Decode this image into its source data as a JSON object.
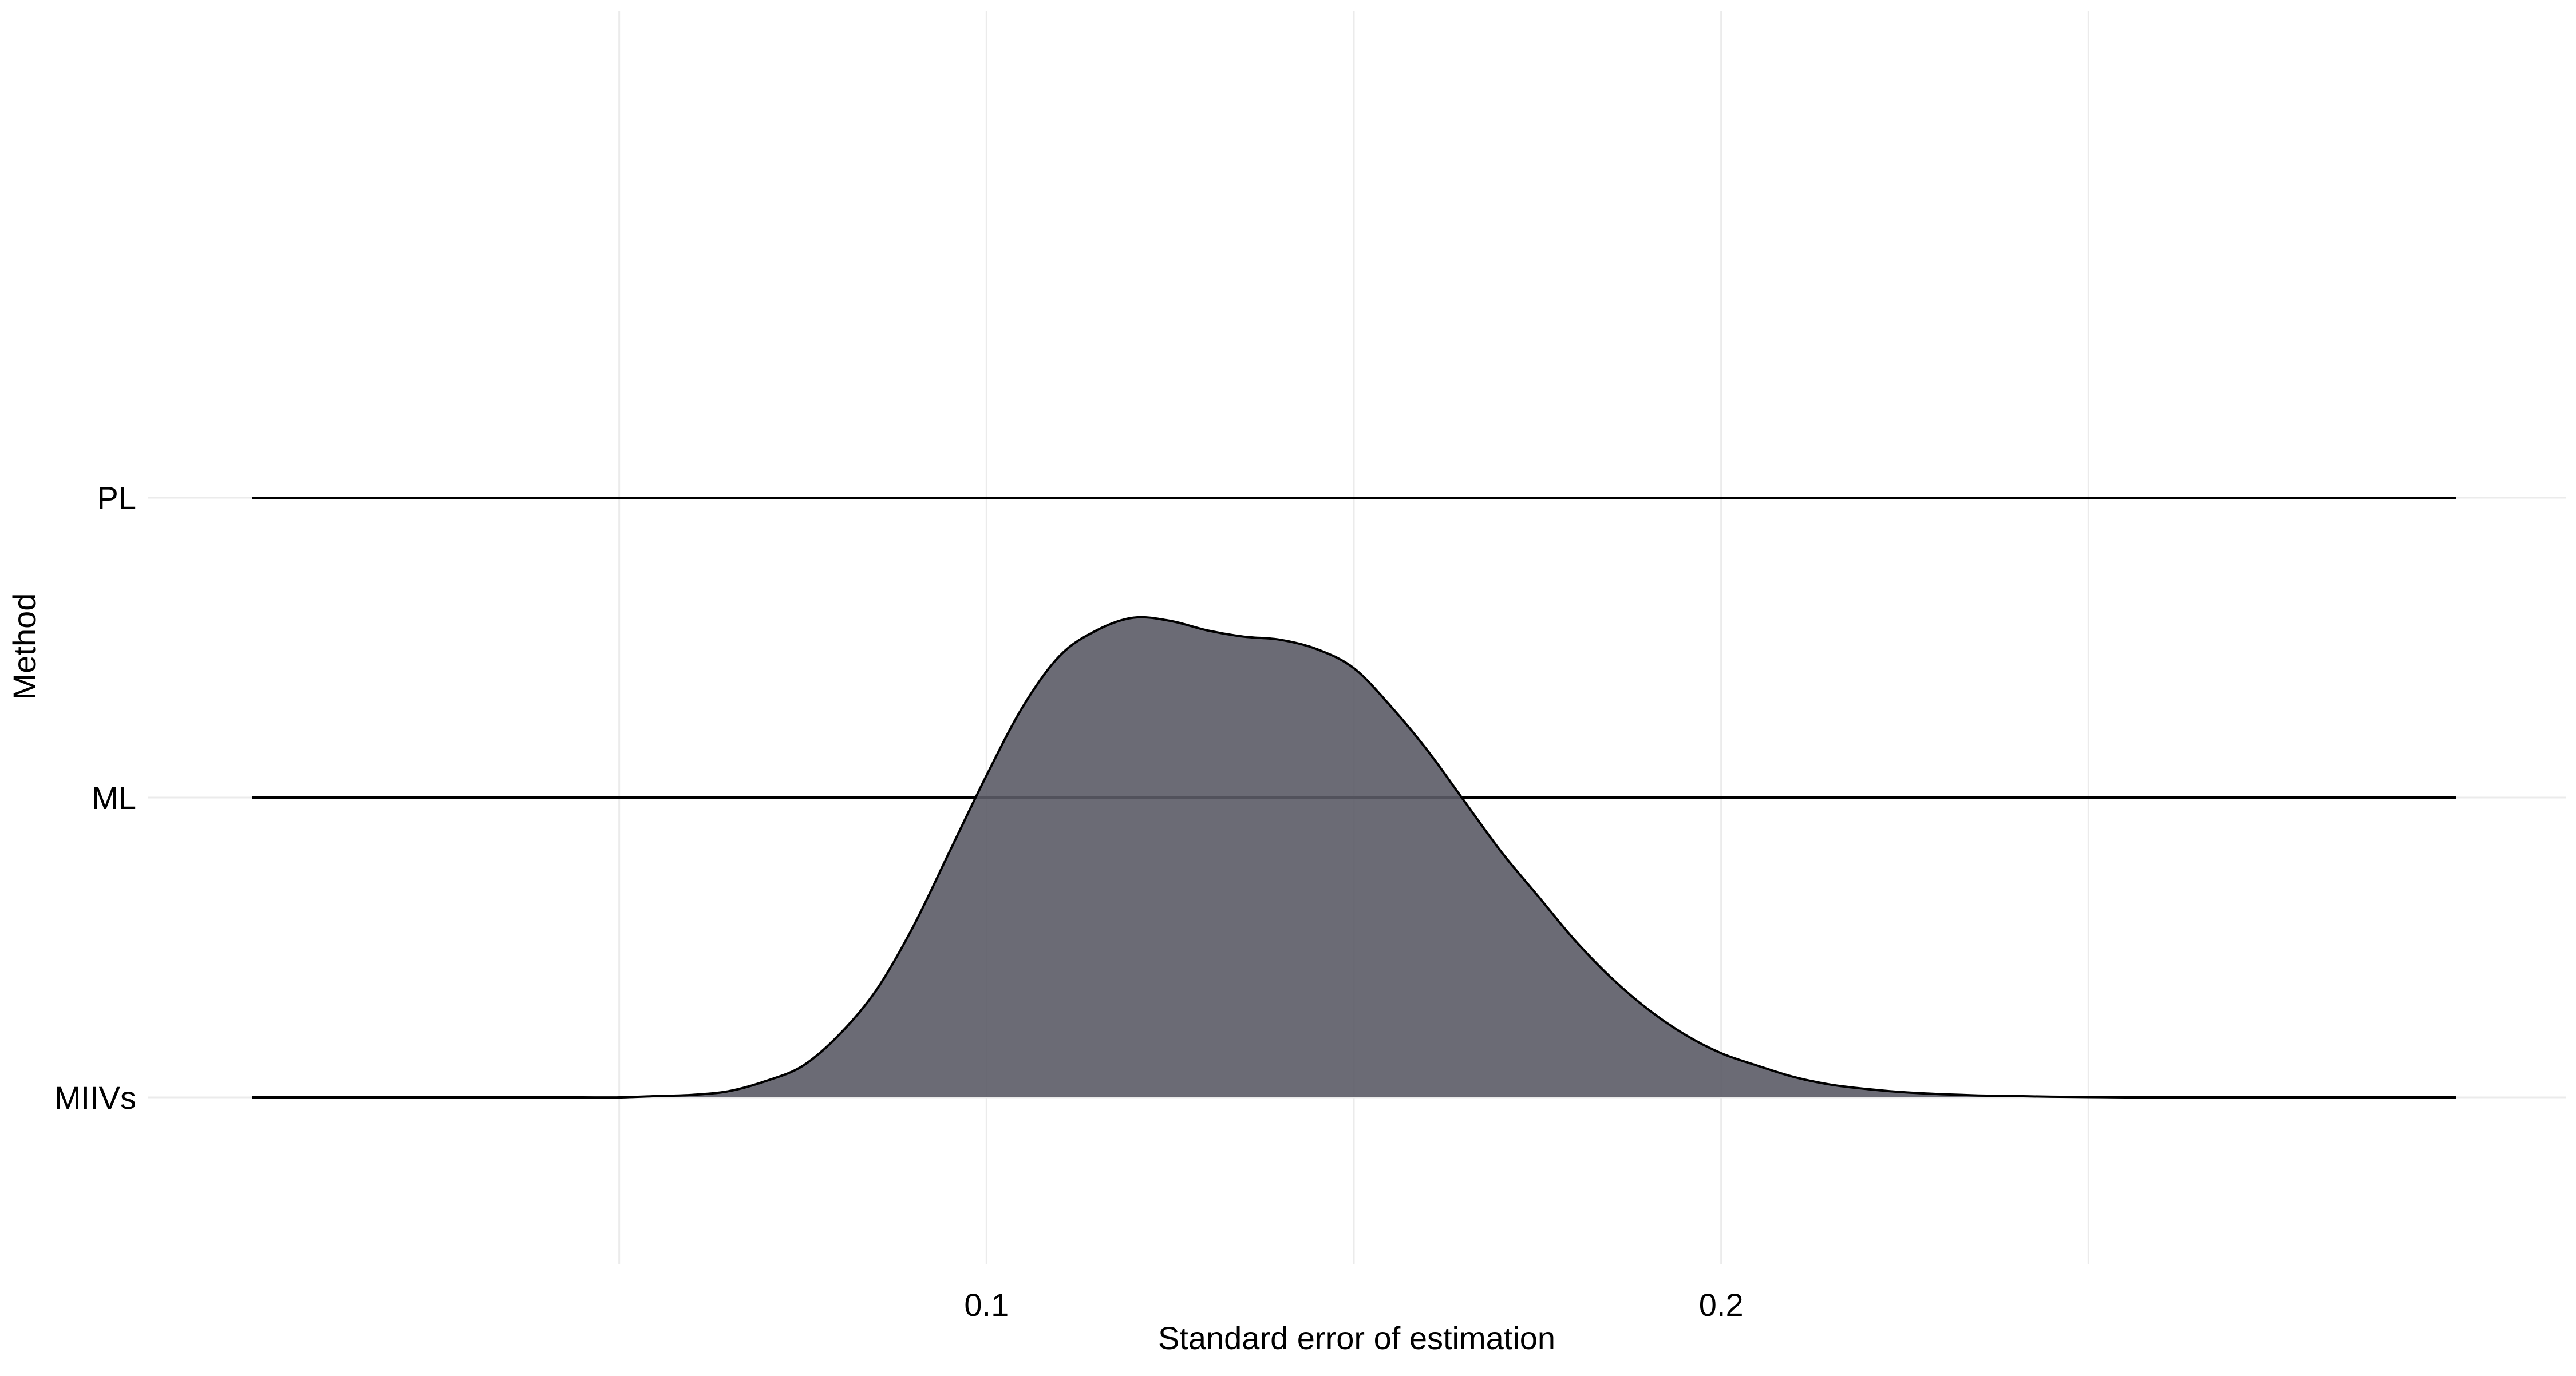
{
  "chart_data": {
    "type": "ridgeline",
    "title": "",
    "xlabel": "Standard error of estimation",
    "ylabel": "Method",
    "xlim": [
      0.0,
      0.3
    ],
    "x_ticks": [
      {
        "value": 0.1,
        "label": "0.1"
      },
      {
        "value": 0.2,
        "label": "0.2"
      }
    ],
    "x_minor_gridlines": [
      0.05,
      0.15,
      0.25
    ],
    "grid": true,
    "legend": "none",
    "scale": 1.0,
    "x_grid": [
      0.0,
      0.005,
      0.01,
      0.015,
      0.02,
      0.025,
      0.03,
      0.035,
      0.04,
      0.045,
      0.05,
      0.055,
      0.06,
      0.065,
      0.07,
      0.075,
      0.08,
      0.085,
      0.09,
      0.095,
      0.1,
      0.105,
      0.11,
      0.115,
      0.12,
      0.125,
      0.13,
      0.135,
      0.14,
      0.145,
      0.15,
      0.155,
      0.16,
      0.165,
      0.17,
      0.175,
      0.18,
      0.185,
      0.19,
      0.195,
      0.2,
      0.205,
      0.21,
      0.215,
      0.22,
      0.225,
      0.23,
      0.235,
      0.24,
      0.245,
      0.25,
      0.255,
      0.26,
      0.265,
      0.27,
      0.275,
      0.28,
      0.285,
      0.29,
      0.295,
      0.3
    ],
    "series": [
      {
        "name": "MIIVs",
        "color": "#5b5b66",
        "density": [
          0.0,
          0.0,
          0.0,
          0.0,
          0.0,
          0.0,
          0.0,
          0.0,
          0.0,
          0.0,
          0.0,
          0.002,
          0.004,
          0.01,
          0.026,
          0.05,
          0.1,
          0.17,
          0.27,
          0.39,
          0.51,
          0.62,
          0.7,
          0.74,
          0.76,
          0.755,
          0.74,
          0.73,
          0.725,
          0.71,
          0.68,
          0.62,
          0.55,
          0.47,
          0.39,
          0.32,
          0.25,
          0.19,
          0.14,
          0.1,
          0.07,
          0.05,
          0.032,
          0.02,
          0.013,
          0.008,
          0.005,
          0.003,
          0.002,
          0.001,
          0.0005,
          0.0,
          0.0,
          0.0,
          0.0,
          0.0,
          0.0,
          0.0,
          0.0,
          0.0,
          0.0
        ]
      },
      {
        "name": "ML",
        "color": "#e8c026",
        "density": [
          0.0,
          0.0,
          0.0,
          0.0,
          0.0,
          0.0,
          0.0,
          0.0,
          0.0,
          0.0,
          0.0,
          0.0,
          0.0,
          0.0,
          0.0,
          0.0,
          0.0,
          0.0,
          0.0,
          0.0,
          0.0,
          0.0,
          0.0,
          0.0,
          0.0,
          0.0,
          0.0,
          0.0,
          0.0,
          0.0,
          0.0,
          0.0,
          0.0,
          0.0,
          0.0,
          0.0,
          0.0,
          0.0,
          0.0,
          0.0,
          0.0,
          0.0,
          0.0,
          0.0,
          0.0,
          0.0,
          0.0,
          0.0,
          0.0,
          0.0,
          0.0,
          0.0,
          0.0,
          0.0,
          0.0,
          0.0,
          0.0,
          0.0,
          0.0,
          0.0,
          0.0
        ]
      },
      {
        "name": "PL",
        "color": "#9b45d6",
        "density": [
          0.0,
          0.0,
          0.0,
          0.0,
          0.0,
          0.0,
          0.0,
          0.0,
          0.0,
          0.0,
          0.0,
          0.0,
          0.0,
          0.0,
          0.0,
          0.0,
          0.0,
          0.0,
          0.0,
          0.0,
          0.0,
          0.0,
          0.0,
          0.0,
          0.0,
          0.0,
          0.0,
          0.0,
          0.0,
          0.0,
          0.0,
          0.0,
          0.0,
          0.0,
          0.0,
          0.0,
          0.0,
          0.0,
          0.0,
          0.0,
          0.0,
          0.0,
          0.0,
          0.0,
          0.0,
          0.0,
          0.0,
          0.0,
          0.0,
          0.0,
          0.0,
          0.0,
          0.0,
          0.0,
          0.0,
          0.0,
          0.0,
          0.0,
          0.0,
          0.0,
          0.0
        ]
      }
    ]
  }
}
